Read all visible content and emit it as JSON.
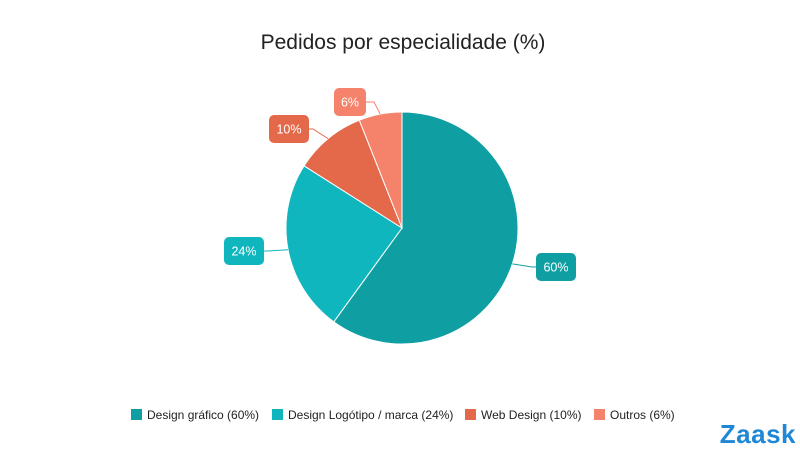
{
  "chart_data": {
    "type": "pie",
    "title": "Pedidos por especialidade (%)",
    "slices": [
      {
        "label": "Design gráfico",
        "value": 60,
        "display": "60%",
        "legend": "Design gráfico (60%)",
        "color": "#0f9fa3"
      },
      {
        "label": "Design Logótipo / marca",
        "value": 24,
        "display": "24%",
        "legend": "Design Logótipo / marca (24%)",
        "color": "#10b6bd"
      },
      {
        "label": "Web Design",
        "value": 10,
        "display": "10%",
        "legend": "Web Design (10%)",
        "color": "#e3694a"
      },
      {
        "label": "Outros",
        "value": 6,
        "display": "6%",
        "legend": "Outros (6%)",
        "color": "#f5826b"
      }
    ],
    "legend_position": "bottom"
  },
  "brand": {
    "logo_text": "Zaask",
    "color": "#1e87d6"
  }
}
